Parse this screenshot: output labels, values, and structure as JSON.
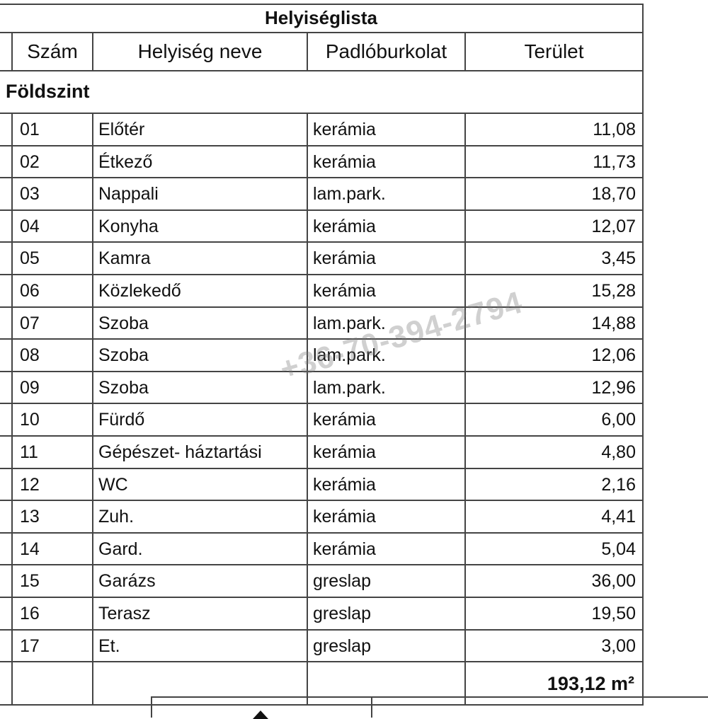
{
  "table": {
    "title": "Helyiséglista",
    "headers": [
      "Szám",
      "Helyiség neve",
      "Padlóburkolat",
      "Terület"
    ],
    "section": "Földszint",
    "rows": [
      {
        "num": "01",
        "name": "Előtér",
        "floor": "kerámia",
        "area": "11,08"
      },
      {
        "num": "02",
        "name": "Étkező",
        "floor": "kerámia",
        "area": "11,73"
      },
      {
        "num": "03",
        "name": "Nappali",
        "floor": "lam.park.",
        "area": "18,70"
      },
      {
        "num": "04",
        "name": "Konyha",
        "floor": "kerámia",
        "area": "12,07"
      },
      {
        "num": "05",
        "name": "Kamra",
        "floor": "kerámia",
        "area": "3,45"
      },
      {
        "num": "06",
        "name": "Közlekedő",
        "floor": "kerámia",
        "area": "15,28"
      },
      {
        "num": "07",
        "name": "Szoba",
        "floor": "lam.park.",
        "area": "14,88"
      },
      {
        "num": "08",
        "name": "Szoba",
        "floor": "lam.park.",
        "area": "12,06"
      },
      {
        "num": "09",
        "name": "Szoba",
        "floor": "lam.park.",
        "area": "12,96"
      },
      {
        "num": "10",
        "name": "Fürdő",
        "floor": "kerámia",
        "area": "6,00"
      },
      {
        "num": "11",
        "name": "Gépészet- háztartási",
        "floor": "kerámia",
        "area": "4,80"
      },
      {
        "num": "12",
        "name": "WC",
        "floor": "kerámia",
        "area": "2,16"
      },
      {
        "num": "13",
        "name": "Zuh.",
        "floor": "kerámia",
        "area": "4,41"
      },
      {
        "num": "14",
        "name": "Gard.",
        "floor": "kerámia",
        "area": "5,04"
      },
      {
        "num": "15",
        "name": "Garázs",
        "floor": "greslap",
        "area": "36,00"
      },
      {
        "num": "16",
        "name": "Terasz",
        "floor": "greslap",
        "area": "19,50"
      },
      {
        "num": "17",
        "name": "Et.",
        "floor": "greslap",
        "area": "3,00"
      }
    ],
    "total": "193,12 m²"
  },
  "watermark": "+36-70-394-2794"
}
